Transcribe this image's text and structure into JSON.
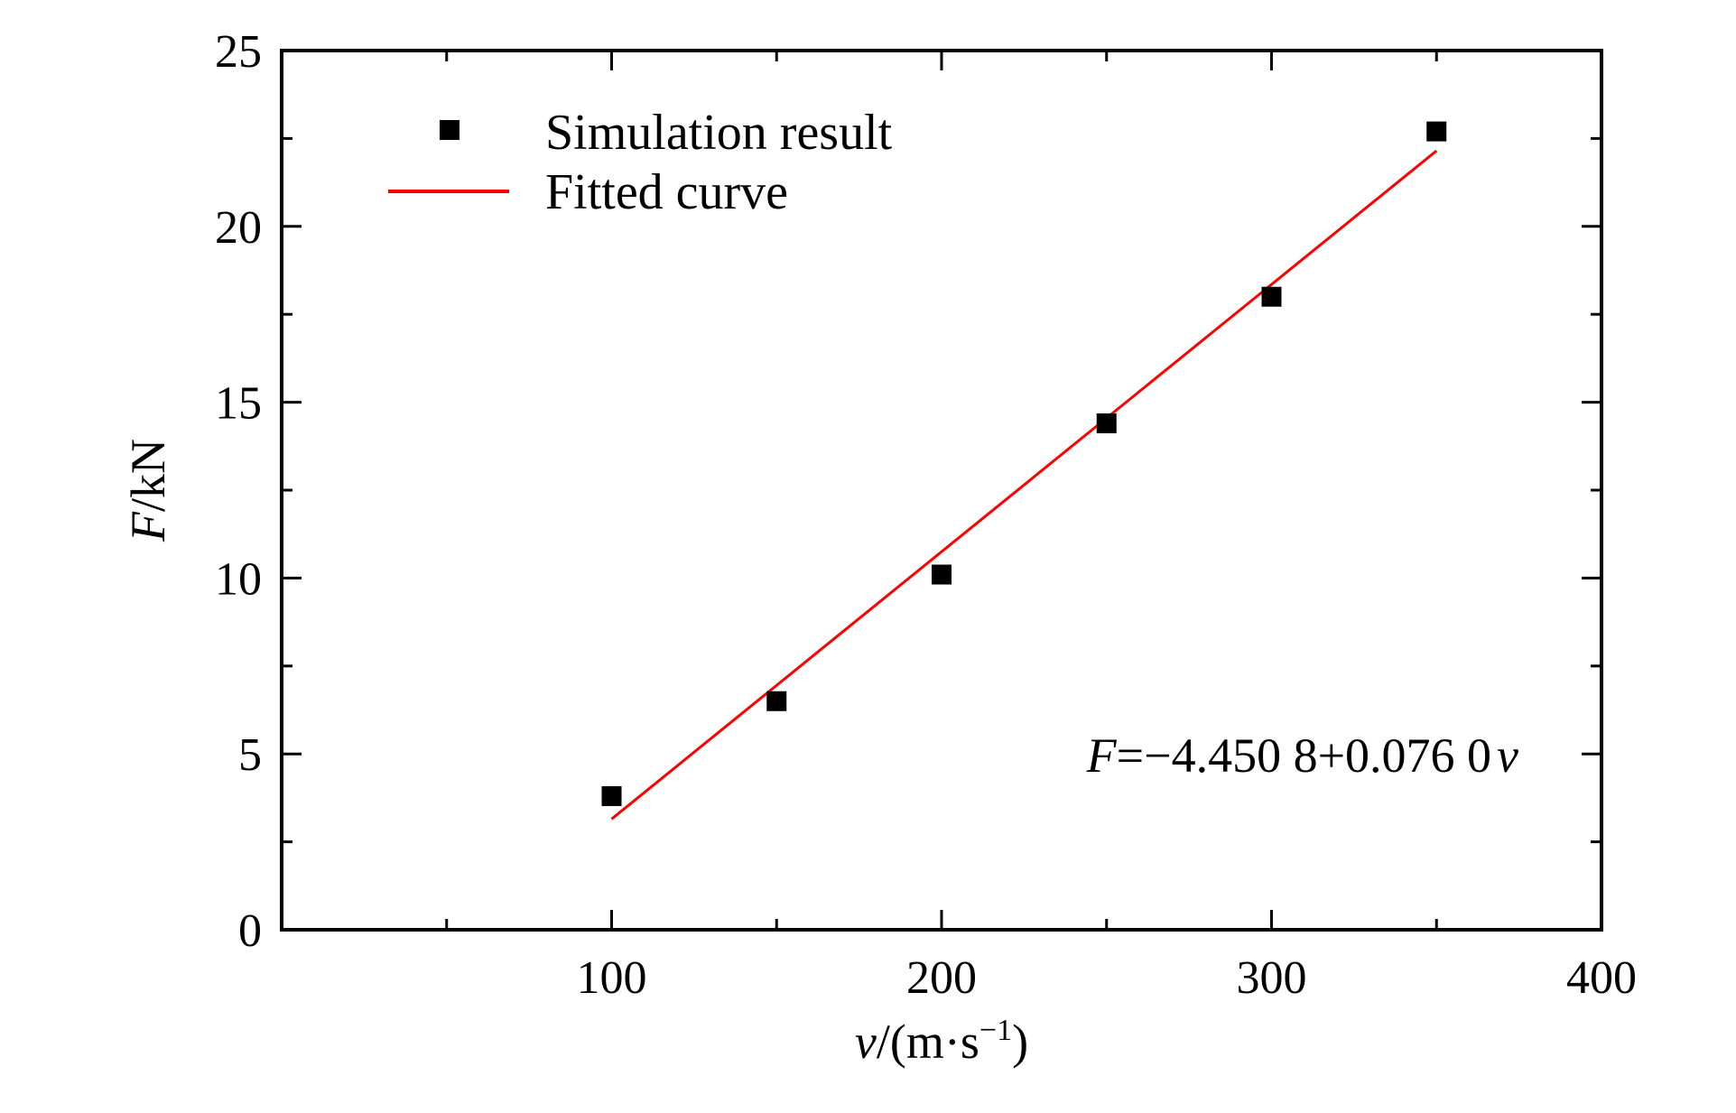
{
  "chart_data": {
    "type": "scatter",
    "title": "",
    "xlim": [
      0,
      400
    ],
    "ylim": [
      0,
      25
    ],
    "x_ticks": [
      100,
      200,
      300,
      400
    ],
    "y_ticks": [
      0,
      5,
      10,
      15,
      20,
      25
    ],
    "x_minor_step": 50,
    "y_minor_step": 2.5,
    "xlabel": {
      "var": "v",
      "rest": "/(m·s",
      "sup": "−1",
      "close": ")"
    },
    "ylabel": {
      "var": "F",
      "rest": "/kN"
    },
    "grid": false,
    "legend_position": "top-left",
    "series": [
      {
        "name": "Simulation result",
        "kind": "scatter",
        "marker": "square",
        "color": "#000000",
        "x": [
          100,
          150,
          200,
          250,
          300,
          350
        ],
        "y": [
          3.8,
          6.5,
          10.1,
          14.4,
          18.0,
          22.7
        ]
      },
      {
        "name": "Fitted curve",
        "kind": "line",
        "color": "#ff0000",
        "intercept": -4.4508,
        "slope": 0.076,
        "x_range": [
          100,
          350
        ]
      }
    ],
    "annotation": {
      "var": "F",
      "text": "=−4.450 8+0.076 0",
      "var2": "v"
    }
  }
}
